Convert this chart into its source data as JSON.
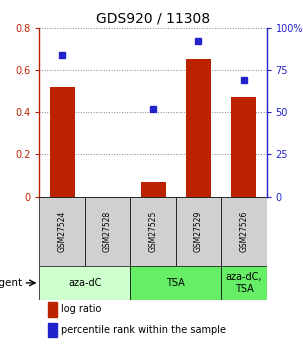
{
  "title": "GDS920 / 11308",
  "samples": [
    "GSM27524",
    "GSM27528",
    "GSM27525",
    "GSM27529",
    "GSM27526"
  ],
  "log_ratio": [
    0.52,
    0.0,
    0.07,
    0.65,
    0.47
  ],
  "percentile_raw": [
    84,
    0,
    52,
    92,
    69
  ],
  "bar_color": "#bb2200",
  "dot_color": "#2222cc",
  "ylim_left": [
    0.0,
    0.8
  ],
  "ylim_right": [
    0,
    100
  ],
  "yticks_left": [
    0,
    0.2,
    0.4,
    0.6,
    0.8
  ],
  "ytick_labels_left": [
    "0",
    "0.2",
    "0.4",
    "0.6",
    "0.8"
  ],
  "yticks_right": [
    0,
    25,
    50,
    75,
    100
  ],
  "ytick_labels_right": [
    "0",
    "25",
    "50",
    "75",
    "100%"
  ],
  "group_configs": [
    {
      "start": 0,
      "end": 1,
      "color": "#ccffcc",
      "label": "aza-dC"
    },
    {
      "start": 2,
      "end": 3,
      "color": "#66ee66",
      "label": "TSA"
    },
    {
      "start": 4,
      "end": 4,
      "color": "#66ee66",
      "label": "aza-dC,\nTSA"
    }
  ],
  "agent_label": "agent",
  "legend_bar_label": "log ratio",
  "legend_dot_label": "percentile rank within the sample",
  "title_fontsize": 10,
  "tick_fontsize": 7,
  "sample_fontsize": 5.5,
  "group_fontsize": 7,
  "legend_fontsize": 7
}
